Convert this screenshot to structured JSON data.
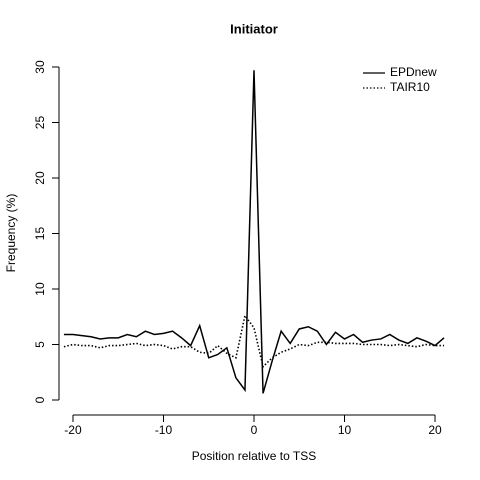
{
  "chart_data": {
    "type": "line",
    "title": "Initiator",
    "x_label": "Position relative to TSS",
    "y_label": "Frequency (%)",
    "x": [
      -21,
      -20,
      -19,
      -18,
      -17,
      -16,
      -15,
      -14,
      -13,
      -12,
      -11,
      -10,
      -9,
      -8,
      -7,
      -6,
      -5,
      -4,
      -3,
      -2,
      -1,
      0,
      1,
      2,
      3,
      4,
      5,
      6,
      7,
      8,
      9,
      10,
      11,
      12,
      13,
      14,
      15,
      16,
      17,
      18,
      19,
      20,
      21
    ],
    "series": [
      {
        "name": "EPDnew",
        "color": "#000000",
        "dash": "solid",
        "values": [
          5.9,
          5.9,
          5.8,
          5.7,
          5.5,
          5.6,
          5.6,
          5.9,
          5.7,
          6.2,
          5.9,
          6.0,
          6.2,
          5.6,
          4.9,
          6.7,
          3.8,
          4.1,
          4.7,
          2.0,
          0.9,
          29.7,
          0.6,
          3.5,
          6.2,
          5.1,
          6.4,
          6.6,
          6.2,
          5.0,
          6.1,
          5.5,
          5.9,
          5.2,
          5.4,
          5.5,
          5.9,
          5.4,
          5.1,
          5.6,
          5.3,
          4.9,
          5.6
        ]
      },
      {
        "name": "TAIR10",
        "color": "#000000",
        "dash": "dotted",
        "values": [
          4.8,
          5.0,
          4.9,
          4.9,
          4.7,
          4.9,
          4.9,
          5.0,
          5.1,
          4.9,
          5.0,
          4.9,
          4.6,
          4.8,
          4.8,
          4.3,
          4.2,
          4.9,
          4.2,
          3.8,
          7.6,
          6.5,
          3.0,
          3.8,
          4.3,
          4.6,
          5.0,
          4.9,
          5.2,
          5.2,
          5.1,
          5.1,
          5.1,
          5.0,
          5.0,
          5.0,
          4.9,
          5.0,
          4.9,
          4.8,
          5.0,
          4.9,
          4.9
        ]
      }
    ],
    "xlim": [
      -21.6,
      21.6
    ],
    "xticks": [
      -20,
      -10,
      0,
      10,
      20
    ],
    "ylim": [
      0,
      30
    ],
    "yticks": [
      0,
      5,
      10,
      15,
      20,
      25,
      30
    ],
    "grid": false,
    "legend": "topright"
  }
}
